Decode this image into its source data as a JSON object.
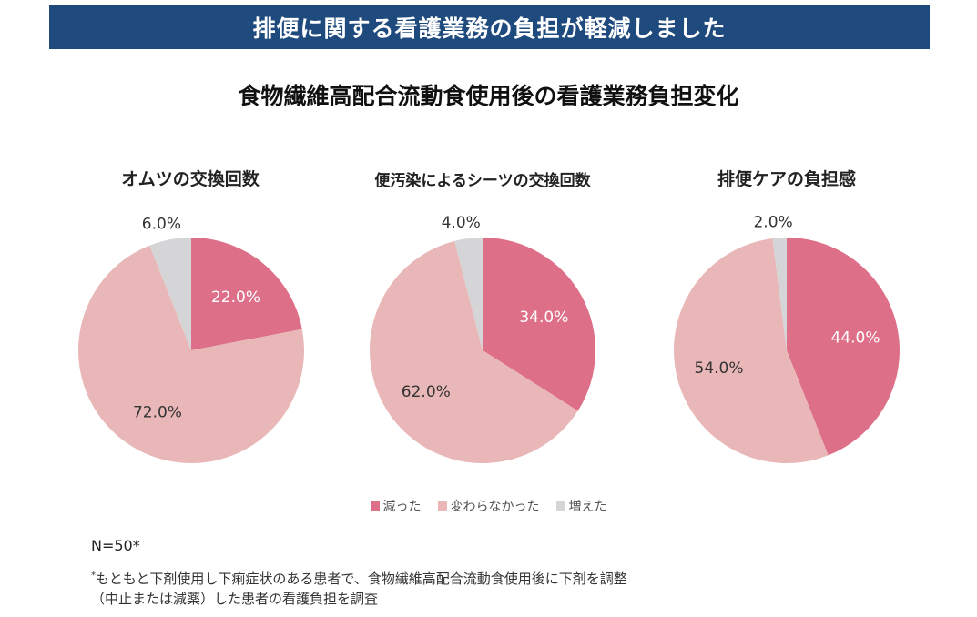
{
  "banner": {
    "text": "排便に関する看護業務の負担が軽減しました"
  },
  "main_title": "食物繊維高配合流動食使用後の看護業務負担変化",
  "colors": {
    "banner_bg": "#1f4a7d",
    "decreased": "#dd6f88",
    "unchanged": "#e9b7b8",
    "increased": "#d5d5d7"
  },
  "legend": [
    {
      "label": "減った",
      "color": "#dd6f88"
    },
    {
      "label": "変わらなかった",
      "color": "#e9b7b8"
    },
    {
      "label": "増えた",
      "color": "#d5d5d7"
    }
  ],
  "chart_data": [
    {
      "type": "pie",
      "title": "オムツの交換回数",
      "slices": [
        {
          "label": "減った",
          "value": 22.0,
          "display": "22.0%",
          "color": "#dd6f88"
        },
        {
          "label": "変わらなかった",
          "value": 72.0,
          "display": "72.0%",
          "color": "#e9b7b8"
        },
        {
          "label": "増えた",
          "value": 6.0,
          "display": "6.0%",
          "color": "#d5d5d7"
        }
      ]
    },
    {
      "type": "pie",
      "title": "便汚染によるシーツの交換回数",
      "slices": [
        {
          "label": "減った",
          "value": 34.0,
          "display": "34.0%",
          "color": "#dd6f88"
        },
        {
          "label": "変わらなかった",
          "value": 62.0,
          "display": "62.0%",
          "color": "#e9b7b8"
        },
        {
          "label": "増えた",
          "value": 4.0,
          "display": "4.0%",
          "color": "#d5d5d7"
        }
      ]
    },
    {
      "type": "pie",
      "title": "排便ケアの負担感",
      "slices": [
        {
          "label": "減った",
          "value": 44.0,
          "display": "44.0%",
          "color": "#dd6f88"
        },
        {
          "label": "変わらなかった",
          "value": 54.0,
          "display": "54.0%",
          "color": "#e9b7b8"
        },
        {
          "label": "増えた",
          "value": 2.0,
          "display": "2.0%",
          "color": "#d5d5d7"
        }
      ]
    }
  ],
  "notes": {
    "n": "N=50*",
    "footnote_mark": "*",
    "footnote_line1": "もともと下剤使用し下痢症状のある患者で、食物繊維高配合流動食使用後に下剤を調整",
    "footnote_line2": "（中止または減薬）した患者の看護負担を調査"
  }
}
